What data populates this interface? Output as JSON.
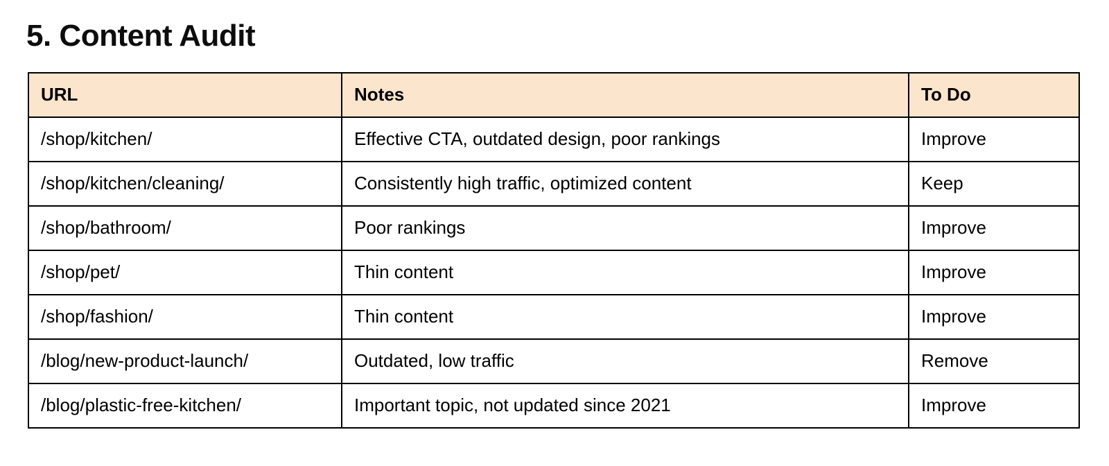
{
  "section": {
    "title": "5. Content Audit"
  },
  "table": {
    "header_bg": "#fce5cd",
    "border_color": "#000000",
    "columns": [
      {
        "label": "URL"
      },
      {
        "label": "Notes"
      },
      {
        "label": "To Do"
      }
    ],
    "rows": [
      {
        "url": "/shop/kitchen/",
        "notes": "Effective CTA, outdated design, poor rankings",
        "todo": "Improve"
      },
      {
        "url": "/shop/kitchen/cleaning/",
        "notes": "Consistently high traffic, optimized content",
        "todo": "Keep"
      },
      {
        "url": "/shop/bathroom/",
        "notes": "Poor rankings",
        "todo": "Improve"
      },
      {
        "url": "/shop/pet/",
        "notes": "Thin content",
        "todo": "Improve"
      },
      {
        "url": "/shop/fashion/",
        "notes": "Thin content",
        "todo": "Improve"
      },
      {
        "url": "/blog/new-product-launch/",
        "notes": "Outdated, low traffic",
        "todo": "Remove"
      },
      {
        "url": "/blog/plastic-free-kitchen/",
        "notes": "Important topic, not updated since 2021",
        "todo": "Improve"
      }
    ]
  }
}
